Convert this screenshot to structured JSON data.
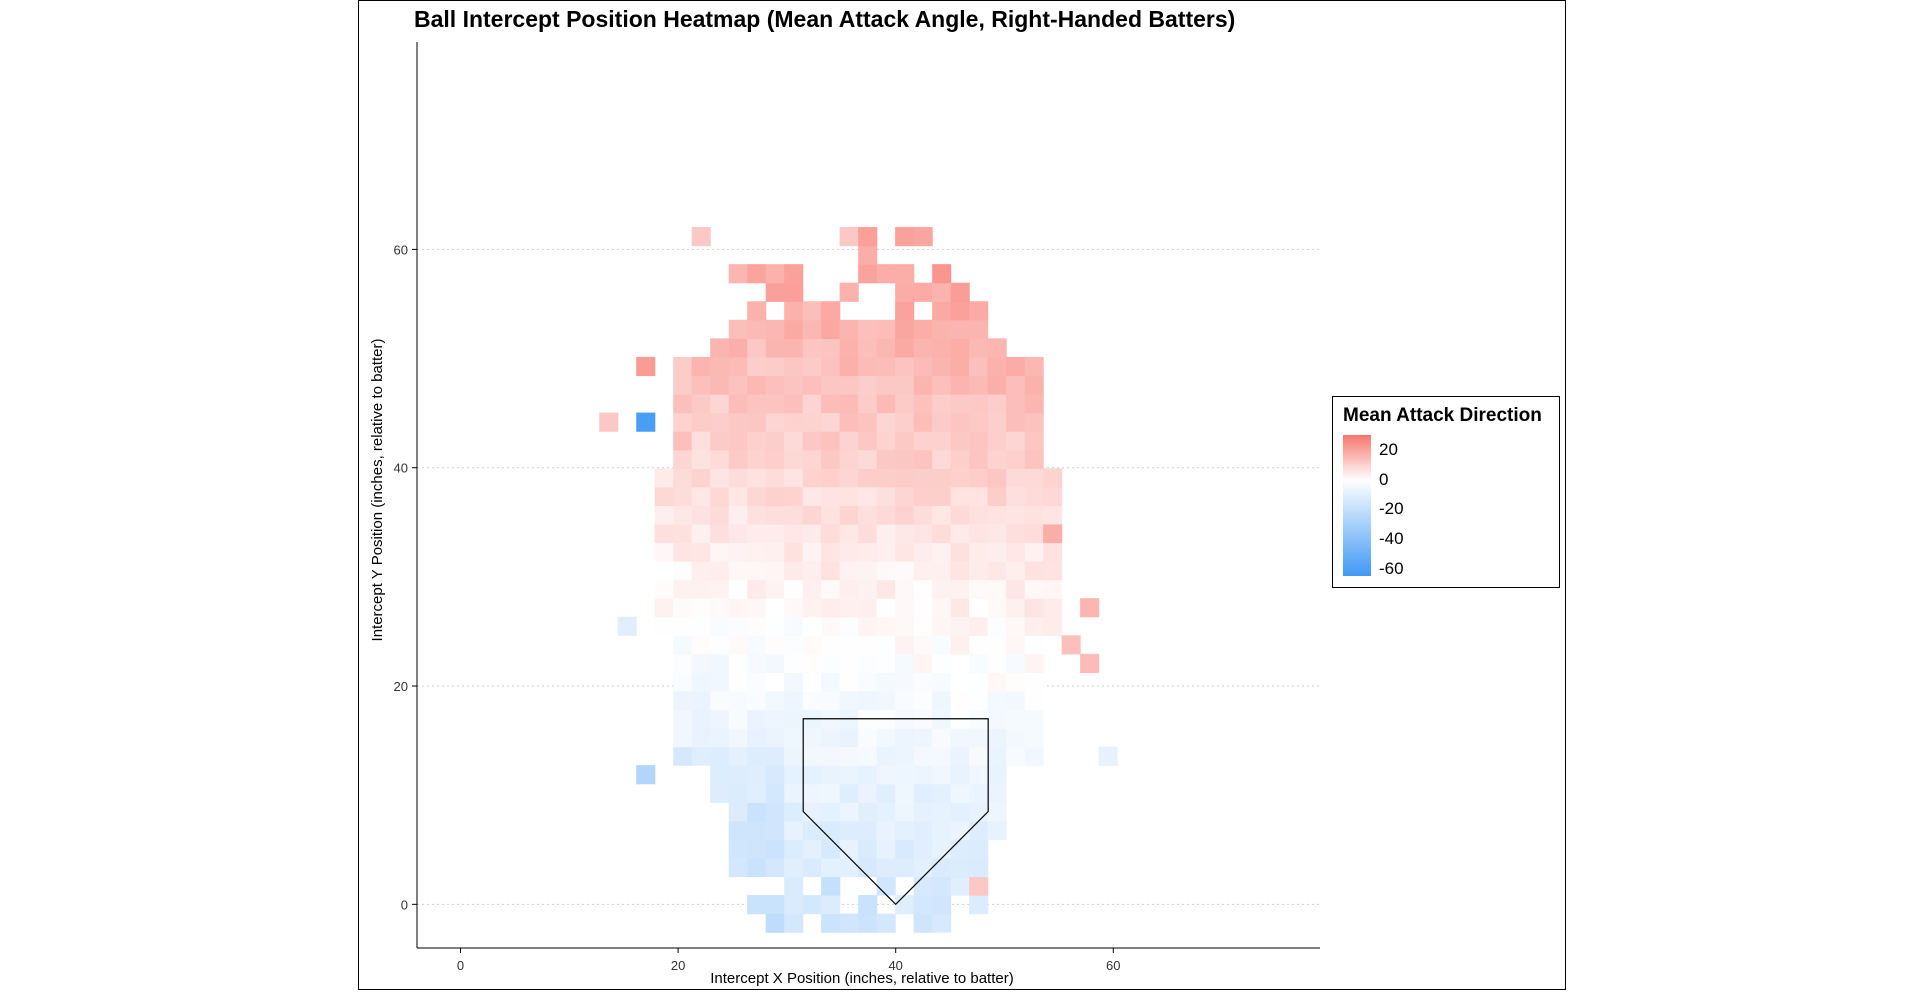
{
  "chart_data": {
    "type": "heatmap",
    "title": "Ball Intercept Position Heatmap (Mean Attack Angle, Right-Handed Batters)",
    "xlabel": "Intercept X Position (inches, relative to batter)",
    "ylabel": "Intercept Y Position (inches, relative to batter)",
    "xlim": [
      -4,
      79
    ],
    "ylim": [
      -4,
      79
    ],
    "x_ticks": [
      0,
      20,
      40,
      60
    ],
    "y_ticks": [
      0,
      20,
      40,
      60
    ],
    "x_tick_labels": [
      "0",
      "20",
      "40",
      "60"
    ],
    "y_tick_labels": [
      "0",
      "20",
      "40",
      "60"
    ],
    "grid": "horizontal-dotted",
    "cell_size": 1.7,
    "legend": {
      "title": "Mean Attack Direction",
      "placement": "right",
      "ticks": [
        20,
        0,
        -20,
        -40,
        -60
      ],
      "tick_labels": [
        "20",
        "0",
        "-20",
        "-40",
        "-60"
      ],
      "range": [
        -65,
        30
      ],
      "colors": {
        "high": "#f8766d",
        "mid": "#ffffff",
        "low": "#3f99f5"
      }
    },
    "home_plate": {
      "points": [
        [
          31.5,
          17
        ],
        [
          48.5,
          17
        ],
        [
          48.5,
          8.5
        ],
        [
          40,
          0
        ],
        [
          31.5,
          8.5
        ]
      ]
    },
    "cell_overrides": [
      {
        "x": 17,
        "y": 45,
        "value": -62
      },
      {
        "x": 17,
        "y": 50,
        "value": 22
      },
      {
        "x": 13.5,
        "y": 45,
        "value": 12
      },
      {
        "x": 17,
        "y": 12.5,
        "value": -26
      },
      {
        "x": 22.5,
        "y": 60.5,
        "value": 12
      },
      {
        "x": 36.5,
        "y": 60.5,
        "value": 12
      },
      {
        "x": 28,
        "y": 57,
        "value": 20
      },
      {
        "x": 26,
        "y": 57,
        "value": 16
      },
      {
        "x": 55,
        "y": 33.5,
        "value": 18
      },
      {
        "x": 57,
        "y": 27.5,
        "value": 16
      },
      {
        "x": 58.5,
        "y": 22.5,
        "value": 15
      },
      {
        "x": 56.5,
        "y": 24.5,
        "value": 14
      },
      {
        "x": 42,
        "y": 52,
        "value": 18
      },
      {
        "x": 32,
        "y": 47,
        "value": 14
      },
      {
        "x": 26,
        "y": 44,
        "value": 12
      },
      {
        "x": 21,
        "y": 43,
        "value": 14
      },
      {
        "x": 34,
        "y": 2,
        "value": -20
      },
      {
        "x": 37,
        "y": 0,
        "value": -18
      },
      {
        "x": 28,
        "y": 8,
        "value": -18
      },
      {
        "x": 48,
        "y": 1,
        "value": 12
      },
      {
        "x": 44,
        "y": 1,
        "value": -15
      },
      {
        "x": 14.5,
        "y": 26,
        "value": -10
      },
      {
        "x": 59,
        "y": 13,
        "value": -8
      }
    ]
  }
}
